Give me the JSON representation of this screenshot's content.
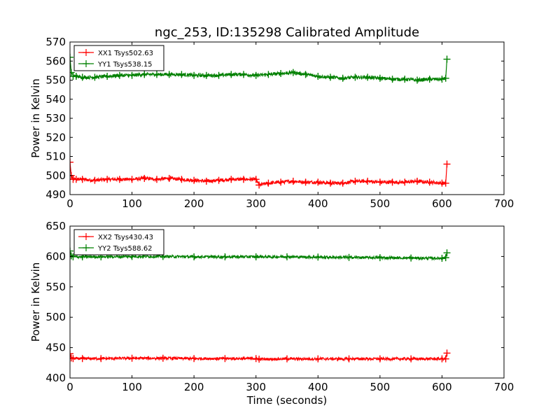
{
  "chart_data": [
    {
      "type": "line",
      "title": "ngc_253, ID:135298 Calibrated Amplitude",
      "xlabel": "",
      "ylabel": "Power in Kelvin",
      "xlim": [
        0,
        700
      ],
      "ylim": [
        490,
        570
      ],
      "xticks": [
        "0",
        "100",
        "200",
        "300",
        "400",
        "500",
        "600",
        "700"
      ],
      "yticks": [
        "490",
        "500",
        "510",
        "520",
        "530",
        "540",
        "550",
        "560",
        "570"
      ],
      "grid": false,
      "legend_position": "top-left",
      "series": [
        {
          "name": "XX1 Tsys502.63",
          "color": "#ff0000",
          "marker": "+",
          "x": [
            0,
            2,
            5,
            10,
            20,
            40,
            60,
            80,
            100,
            120,
            140,
            160,
            180,
            200,
            220,
            240,
            260,
            280,
            300,
            305,
            320,
            340,
            360,
            380,
            400,
            420,
            440,
            460,
            480,
            500,
            520,
            540,
            560,
            580,
            600,
            606,
            608
          ],
          "y": [
            507,
            500,
            498,
            498,
            498,
            497.5,
            498,
            498,
            498,
            498.5,
            498,
            498.5,
            498,
            497.5,
            497,
            497.5,
            498,
            498,
            498,
            495,
            496,
            496.5,
            497,
            496.5,
            496.5,
            496,
            496,
            497,
            497,
            496.5,
            496.5,
            496.5,
            497,
            496.5,
            496,
            496,
            506
          ]
        },
        {
          "name": "YY1 Tsys538.15",
          "color": "#008000",
          "marker": "+",
          "x": [
            0,
            2,
            5,
            10,
            20,
            40,
            60,
            80,
            100,
            120,
            140,
            160,
            180,
            200,
            220,
            240,
            260,
            280,
            300,
            320,
            340,
            360,
            380,
            400,
            420,
            440,
            460,
            480,
            500,
            520,
            540,
            560,
            580,
            600,
            606,
            608
          ],
          "y": [
            562,
            554,
            552,
            552,
            551.5,
            551.5,
            552,
            552.5,
            552.5,
            553,
            553,
            553,
            553,
            552.5,
            552.5,
            552.5,
            553,
            553,
            552.5,
            553,
            553.5,
            554,
            553,
            552,
            551.5,
            551,
            551.5,
            551.5,
            551,
            550.5,
            550.5,
            550,
            550.5,
            550.5,
            551,
            561
          ]
        }
      ]
    },
    {
      "type": "line",
      "title": "",
      "xlabel": "Time (seconds)",
      "ylabel": "Power in Kelvin",
      "xlim": [
        0,
        700
      ],
      "ylim": [
        400,
        650
      ],
      "xticks": [
        "0",
        "100",
        "200",
        "300",
        "400",
        "500",
        "600",
        "700"
      ],
      "yticks": [
        "400",
        "450",
        "500",
        "550",
        "600",
        "650"
      ],
      "grid": false,
      "legend_position": "top-left",
      "series": [
        {
          "name": "XX2 Tsys430.43",
          "color": "#ff0000",
          "marker": "+",
          "x": [
            0,
            2,
            5,
            20,
            50,
            100,
            150,
            200,
            250,
            300,
            305,
            350,
            400,
            450,
            500,
            550,
            600,
            606,
            608
          ],
          "y": [
            440,
            433,
            432,
            432,
            432,
            432.5,
            432.5,
            432,
            432,
            432,
            431,
            431.5,
            431.5,
            431.5,
            431.5,
            431.5,
            431.5,
            431.5,
            441
          ]
        },
        {
          "name": "YY2 Tsys588.62",
          "color": "#008000",
          "marker": "+",
          "x": [
            0,
            2,
            5,
            20,
            50,
            100,
            150,
            200,
            250,
            300,
            350,
            400,
            450,
            500,
            550,
            600,
            606,
            608
          ],
          "y": [
            609,
            601,
            599.5,
            599.5,
            599.5,
            600,
            600,
            599.5,
            599.5,
            599.5,
            599.5,
            599,
            598.5,
            598,
            597.5,
            597,
            598,
            606
          ]
        }
      ]
    }
  ]
}
